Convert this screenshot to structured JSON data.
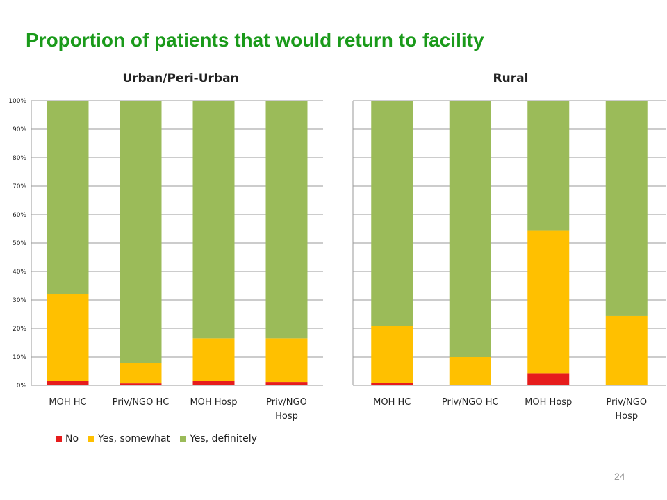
{
  "slide": {
    "title": "Proportion of patients that would return to facility",
    "page_number": "24"
  },
  "chart_data": [
    {
      "type": "bar",
      "stacked": true,
      "title": "Urban/Peri-Urban",
      "categories": [
        "MOH HC",
        "Priv/NGO HC",
        "MOH Hosp",
        "Priv/NGO Hosp"
      ],
      "series": [
        {
          "name": "No",
          "values": [
            1.5,
            0.7,
            1.5,
            1.2
          ]
        },
        {
          "name": "Yes, somewhat",
          "values": [
            30.5,
            7.3,
            15.0,
            15.3
          ]
        },
        {
          "name": "Yes, definitely",
          "values": [
            68.0,
            92.0,
            83.5,
            83.5
          ]
        }
      ],
      "ylim": [
        0,
        100
      ],
      "yticks": [
        "0%",
        "10%",
        "20%",
        "30%",
        "40%",
        "50%",
        "60%",
        "70%",
        "80%",
        "90%",
        "100%"
      ],
      "grid": true
    },
    {
      "type": "bar",
      "stacked": true,
      "title": "Rural",
      "categories": [
        "MOH HC",
        "Priv/NGO HC",
        "MOH Hosp",
        "Priv/NGO Hosp"
      ],
      "series": [
        {
          "name": "No",
          "values": [
            0.8,
            0,
            4.3,
            0
          ]
        },
        {
          "name": "Yes, somewhat",
          "values": [
            20.0,
            10.0,
            50.2,
            24.4
          ]
        },
        {
          "name": "Yes, definitely",
          "values": [
            79.2,
            90.0,
            45.5,
            75.6
          ]
        }
      ],
      "ylim": [
        0,
        100
      ],
      "grid": true
    }
  ],
  "legend": {
    "placement": "bottom-left",
    "items": [
      {
        "label": "No",
        "color": "#e61c1c"
      },
      {
        "label": "Yes, somewhat",
        "color": "#ffc000"
      },
      {
        "label": "Yes, definitely",
        "color": "#9bbb59"
      }
    ]
  }
}
